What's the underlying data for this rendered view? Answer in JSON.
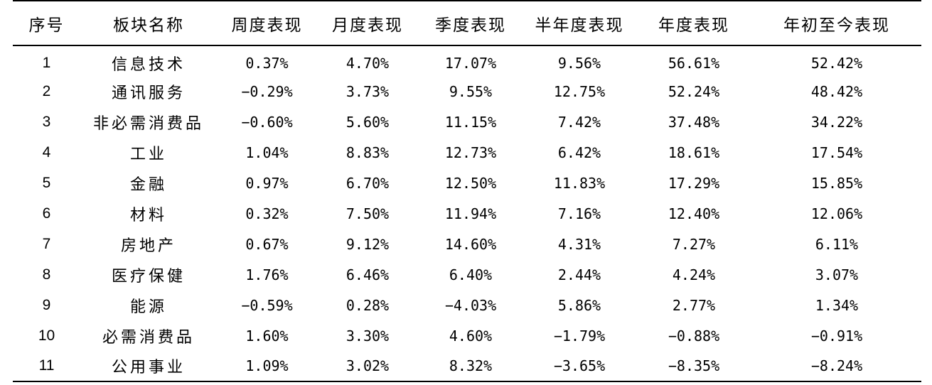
{
  "table": {
    "headers": [
      "序号",
      "板块名称",
      "周度表现",
      "月度表现",
      "季度表现",
      "半年度表现",
      "年度表现",
      "年初至今表现"
    ],
    "rows": [
      [
        "1",
        "信息技术",
        "0.37%",
        "4.70%",
        "17.07%",
        "9.56%",
        "56.61%",
        "52.42%"
      ],
      [
        "2",
        "通讯服务",
        "−0.29%",
        "3.73%",
        "9.55%",
        "12.75%",
        "52.24%",
        "48.42%"
      ],
      [
        "3",
        "非必需消费品",
        "−0.60%",
        "5.60%",
        "11.15%",
        "7.42%",
        "37.48%",
        "34.22%"
      ],
      [
        "4",
        "工业",
        "1.04%",
        "8.83%",
        "12.73%",
        "6.42%",
        "18.61%",
        "17.54%"
      ],
      [
        "5",
        "金融",
        "0.97%",
        "6.70%",
        "12.50%",
        "11.83%",
        "17.29%",
        "15.85%"
      ],
      [
        "6",
        "材料",
        "0.32%",
        "7.50%",
        "11.94%",
        "7.16%",
        "12.40%",
        "12.06%"
      ],
      [
        "7",
        "房地产",
        "0.67%",
        "9.12%",
        "14.60%",
        "4.31%",
        "7.27%",
        "6.11%"
      ],
      [
        "8",
        "医疗保健",
        "1.76%",
        "6.46%",
        "6.40%",
        "2.44%",
        "4.24%",
        "3.07%"
      ],
      [
        "9",
        "能源",
        "−0.59%",
        "0.28%",
        "−4.03%",
        "5.86%",
        "2.77%",
        "1.34%"
      ],
      [
        "10",
        "必需消费品",
        "1.60%",
        "3.30%",
        "4.60%",
        "−1.79%",
        "−0.88%",
        "−0.91%"
      ],
      [
        "11",
        "公用事业",
        "1.09%",
        "3.02%",
        "8.32%",
        "−3.65%",
        "−8.35%",
        "−8.24%"
      ]
    ]
  }
}
